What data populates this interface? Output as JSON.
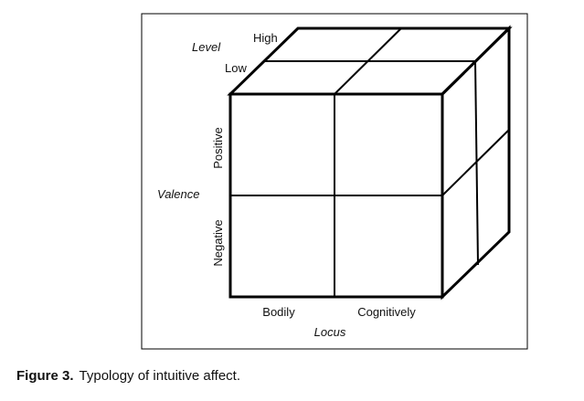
{
  "figure": {
    "caption_label": "Figure 3.",
    "caption_text": "Typology of intuitive affect.",
    "axes": {
      "level": {
        "title": "Level",
        "values": [
          "High",
          "Low"
        ]
      },
      "valence": {
        "title": "Valence",
        "values": [
          "Positive",
          "Negative"
        ]
      },
      "locus": {
        "title": "Locus",
        "values": [
          "Bodily",
          "Cognitively"
        ]
      }
    }
  }
}
